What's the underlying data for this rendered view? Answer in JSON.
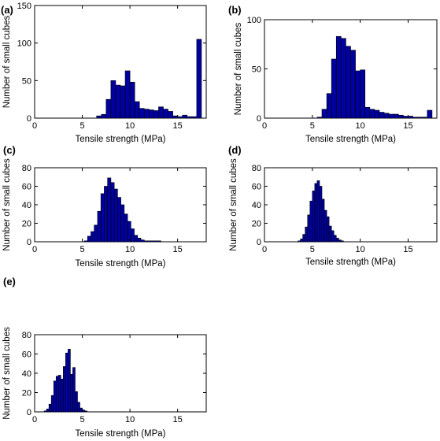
{
  "colors": {
    "bar_fill": "#0000a0",
    "bar_edge": "#000000",
    "background": "#ffffff"
  },
  "chart_data": [
    {
      "type": "bar",
      "panel_label": "(a)",
      "xlabel": "Tensile strength (MPa)",
      "ylabel": "Number of small cubes",
      "xlim": [
        0,
        18
      ],
      "ylim": [
        0,
        150
      ],
      "xticks": [
        0,
        5,
        10,
        15
      ],
      "yticks": [
        0,
        50,
        100,
        150
      ],
      "bin_width": 0.5,
      "bins": [
        {
          "x": 6.5,
          "y": 3
        },
        {
          "x": 7.0,
          "y": 5
        },
        {
          "x": 7.5,
          "y": 25
        },
        {
          "x": 8.0,
          "y": 50
        },
        {
          "x": 8.5,
          "y": 44
        },
        {
          "x": 9.0,
          "y": 43
        },
        {
          "x": 9.5,
          "y": 63
        },
        {
          "x": 10.0,
          "y": 48
        },
        {
          "x": 10.5,
          "y": 22
        },
        {
          "x": 11.0,
          "y": 13
        },
        {
          "x": 11.5,
          "y": 12
        },
        {
          "x": 12.0,
          "y": 11
        },
        {
          "x": 12.5,
          "y": 10
        },
        {
          "x": 13.0,
          "y": 15
        },
        {
          "x": 13.5,
          "y": 12
        },
        {
          "x": 14.0,
          "y": 9
        },
        {
          "x": 14.5,
          "y": 3
        },
        {
          "x": 15.0,
          "y": 2
        },
        {
          "x": 15.5,
          "y": 4
        },
        {
          "x": 16.0,
          "y": 2
        },
        {
          "x": 16.5,
          "y": 2
        },
        {
          "x": 17.0,
          "y": 105
        }
      ]
    },
    {
      "type": "bar",
      "panel_label": "(b)",
      "xlabel": "Tensile strength (MPa)",
      "ylabel": "Number of small cubes",
      "xlim": [
        0,
        18
      ],
      "ylim": [
        0,
        100
      ],
      "xticks": [
        0,
        5,
        10,
        15
      ],
      "yticks": [
        0,
        50,
        100
      ],
      "bin_width": 0.5,
      "bins": [
        {
          "x": 5.5,
          "y": 1
        },
        {
          "x": 6.0,
          "y": 9
        },
        {
          "x": 6.5,
          "y": 25
        },
        {
          "x": 7.0,
          "y": 60
        },
        {
          "x": 7.5,
          "y": 83
        },
        {
          "x": 8.0,
          "y": 81
        },
        {
          "x": 8.5,
          "y": 73
        },
        {
          "x": 9.0,
          "y": 69
        },
        {
          "x": 9.5,
          "y": 48
        },
        {
          "x": 10.0,
          "y": 49
        },
        {
          "x": 10.5,
          "y": 11
        },
        {
          "x": 11.0,
          "y": 9
        },
        {
          "x": 11.5,
          "y": 8
        },
        {
          "x": 12.0,
          "y": 6
        },
        {
          "x": 12.5,
          "y": 5
        },
        {
          "x": 13.0,
          "y": 4
        },
        {
          "x": 13.5,
          "y": 4
        },
        {
          "x": 14.0,
          "y": 3
        },
        {
          "x": 14.5,
          "y": 2
        },
        {
          "x": 15.0,
          "y": 2
        },
        {
          "x": 15.5,
          "y": 1
        },
        {
          "x": 16.0,
          "y": 1
        },
        {
          "x": 16.5,
          "y": 1
        },
        {
          "x": 17.0,
          "y": 8
        }
      ]
    },
    {
      "type": "bar",
      "panel_label": "(c)",
      "xlabel": "Tensile strength (MPa)",
      "ylabel": "Number of small cubes",
      "xlim": [
        0,
        18
      ],
      "ylim": [
        0,
        80
      ],
      "xticks": [
        0,
        5,
        10,
        15
      ],
      "yticks": [
        0,
        20,
        40,
        60,
        80
      ],
      "bin_width": 0.35,
      "bins": [
        {
          "x": 5.2,
          "y": 1
        },
        {
          "x": 5.55,
          "y": 6
        },
        {
          "x": 5.9,
          "y": 11
        },
        {
          "x": 6.25,
          "y": 18
        },
        {
          "x": 6.6,
          "y": 33
        },
        {
          "x": 6.95,
          "y": 52
        },
        {
          "x": 7.3,
          "y": 60
        },
        {
          "x": 7.65,
          "y": 69
        },
        {
          "x": 8.0,
          "y": 64
        },
        {
          "x": 8.35,
          "y": 57
        },
        {
          "x": 8.7,
          "y": 48
        },
        {
          "x": 9.05,
          "y": 40
        },
        {
          "x": 9.4,
          "y": 30
        },
        {
          "x": 9.75,
          "y": 22
        },
        {
          "x": 10.1,
          "y": 14
        },
        {
          "x": 10.45,
          "y": 7
        },
        {
          "x": 10.8,
          "y": 4
        },
        {
          "x": 11.15,
          "y": 2
        },
        {
          "x": 11.5,
          "y": 1
        },
        {
          "x": 11.85,
          "y": 1
        },
        {
          "x": 12.2,
          "y": 1
        },
        {
          "x": 12.55,
          "y": 1
        },
        {
          "x": 12.9,
          "y": 1
        }
      ]
    },
    {
      "type": "bar",
      "panel_label": "(d)",
      "xlabel": "Tensile strength (MPa)",
      "ylabel": "Number of small cubes",
      "xlim": [
        0,
        18
      ],
      "ylim": [
        0,
        80
      ],
      "xticks": [
        0,
        5,
        10,
        15
      ],
      "yticks": [
        0,
        20,
        40,
        60,
        80
      ],
      "bin_width": 0.25,
      "bins": [
        {
          "x": 3.5,
          "y": 1
        },
        {
          "x": 3.75,
          "y": 3
        },
        {
          "x": 4.0,
          "y": 8
        },
        {
          "x": 4.25,
          "y": 16
        },
        {
          "x": 4.5,
          "y": 29
        },
        {
          "x": 4.75,
          "y": 44
        },
        {
          "x": 5.0,
          "y": 55
        },
        {
          "x": 5.25,
          "y": 63
        },
        {
          "x": 5.5,
          "y": 66
        },
        {
          "x": 5.75,
          "y": 60
        },
        {
          "x": 6.0,
          "y": 46
        },
        {
          "x": 6.25,
          "y": 34
        },
        {
          "x": 6.5,
          "y": 27
        },
        {
          "x": 6.75,
          "y": 17
        },
        {
          "x": 7.0,
          "y": 12
        },
        {
          "x": 7.25,
          "y": 7
        },
        {
          "x": 7.5,
          "y": 4
        },
        {
          "x": 7.75,
          "y": 2
        },
        {
          "x": 8.0,
          "y": 1
        }
      ]
    },
    {
      "type": "bar",
      "panel_label": "(e)",
      "xlabel": "Tensile strength (MPa)",
      "ylabel": "Number of small cubes",
      "xlim": [
        0,
        18
      ],
      "ylim": [
        0,
        80
      ],
      "xticks": [
        0,
        5,
        10,
        15
      ],
      "yticks": [
        0,
        20,
        40,
        60,
        80
      ],
      "bin_width": 0.25,
      "bins": [
        {
          "x": 1.0,
          "y": 1
        },
        {
          "x": 1.25,
          "y": 3
        },
        {
          "x": 1.5,
          "y": 8
        },
        {
          "x": 1.75,
          "y": 17
        },
        {
          "x": 2.0,
          "y": 32
        },
        {
          "x": 2.25,
          "y": 37
        },
        {
          "x": 2.5,
          "y": 38
        },
        {
          "x": 2.75,
          "y": 34
        },
        {
          "x": 3.0,
          "y": 47
        },
        {
          "x": 3.25,
          "y": 61
        },
        {
          "x": 3.5,
          "y": 65
        },
        {
          "x": 3.75,
          "y": 39
        },
        {
          "x": 4.0,
          "y": 46
        },
        {
          "x": 4.25,
          "y": 21
        },
        {
          "x": 4.5,
          "y": 10
        },
        {
          "x": 4.75,
          "y": 4
        },
        {
          "x": 5.0,
          "y": 2
        },
        {
          "x": 5.25,
          "y": 1
        }
      ]
    }
  ]
}
